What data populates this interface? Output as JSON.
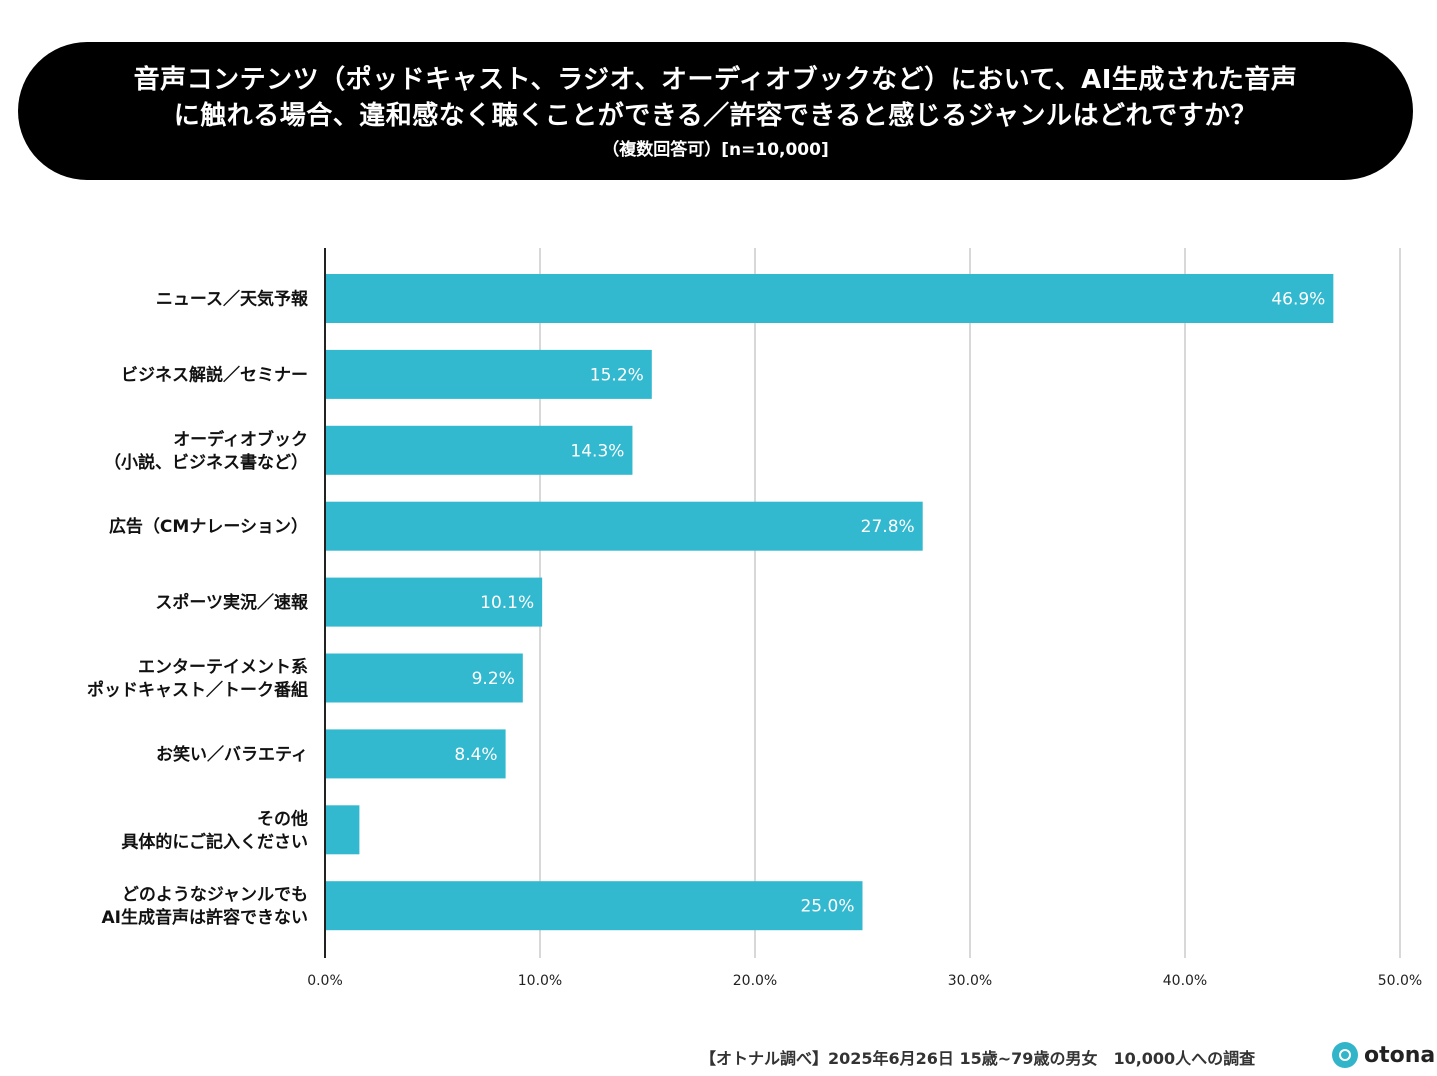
{
  "banner": {
    "title_line1": "音声コンテンツ（ポッドキャスト、ラジオ、オーディオブックなど）において、AI生成された音声",
    "title_line2": "に触れる場合、違和感なく聴くことができる／許容できると感じるジャンルはどれですか？",
    "subtitle": "（複数回答可）[n=10,000]"
  },
  "chart_data": {
    "type": "bar",
    "orientation": "horizontal",
    "title": "音声コンテンツ（ポッドキャスト、ラジオ、オーディオブックなど）において、AI生成された音声に触れる場合、違和感なく聴くことができる／許容できると感じるジャンルはどれですか？",
    "subtitle": "（複数回答可）[n=10,000]",
    "categories": [
      [
        "ニュース／天気予報"
      ],
      [
        "ビジネス解説／セミナー"
      ],
      [
        "オーディオブック",
        "（小説、ビジネス書など）"
      ],
      [
        "広告（CMナレーション）"
      ],
      [
        "スポーツ実況／速報"
      ],
      [
        "エンターテイメント系",
        "ポッドキャスト／トーク番組"
      ],
      [
        "お笑い／バラエティ"
      ],
      [
        "その他",
        "具体的にご記入ください"
      ],
      [
        "どのようなジャンルでも",
        "AI生成音声は許容できない"
      ]
    ],
    "values": [
      46.9,
      15.2,
      14.3,
      27.8,
      10.1,
      9.2,
      8.4,
      1.6,
      25.0
    ],
    "value_labels": [
      "46.9%",
      "15.2%",
      "14.3%",
      "27.8%",
      "10.1%",
      "9.2%",
      "8.4%",
      "",
      "25.0%"
    ],
    "xlim": [
      0,
      50
    ],
    "x_ticks": [
      0,
      10,
      20,
      30,
      40,
      50
    ],
    "x_tick_labels": [
      "0.0%",
      "10.0%",
      "20.0%",
      "30.0%",
      "40.0%",
      "50.0%"
    ],
    "xlabel": "",
    "ylabel": "",
    "grid": true,
    "bar_color": "#32b9cf"
  },
  "footer": {
    "note": "【オトナル調べ】2025年6月26日 15歳~79歳の男女　10,000人への調査",
    "logo_text": "otonal"
  },
  "colors": {
    "bar": "#32b9cf",
    "grid": "#cccccc",
    "axis": "#222222",
    "banner_bg": "#000000"
  }
}
